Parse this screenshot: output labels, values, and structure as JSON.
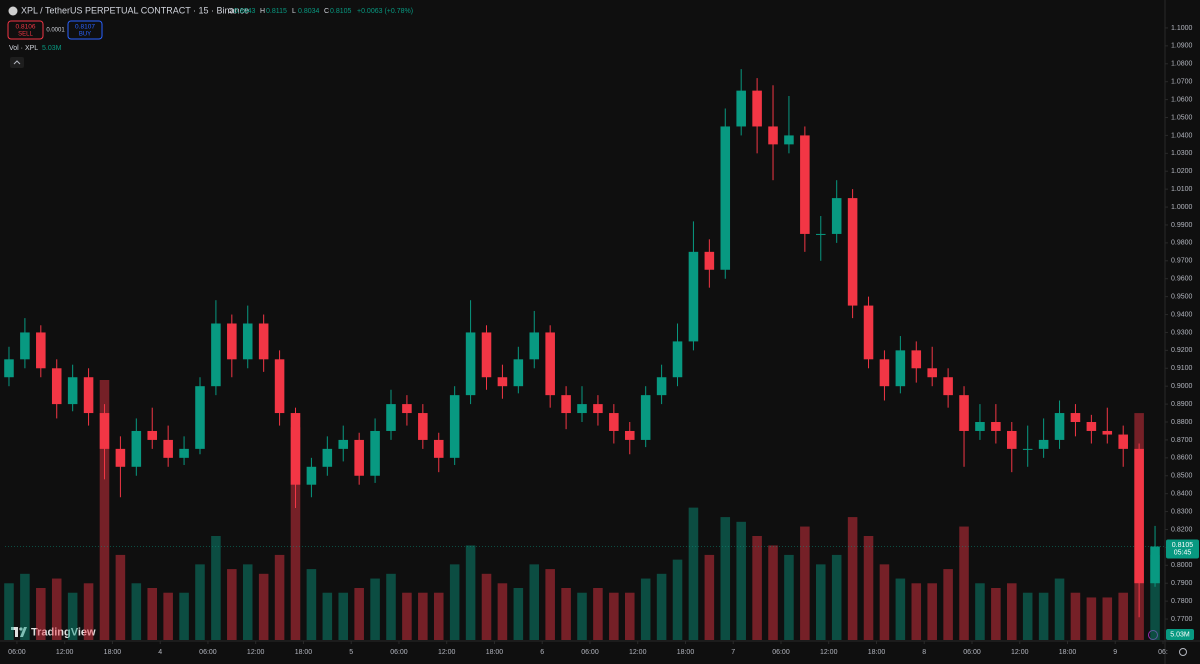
{
  "chart_data": {
    "type": "candlestick",
    "title": "XPL / TetherUS PERPETUAL CONTRACT · 15 · Binance",
    "ohlc_legend": [
      {
        "label": "O",
        "value": "0.8043"
      },
      {
        "label": "H",
        "value": "0.8115"
      },
      {
        "label": "L",
        "value": "0.8034"
      },
      {
        "label": "C",
        "value": "0.8105"
      }
    ],
    "change": "+0.0063 (+0.78%)",
    "sell": {
      "price": "0.8106",
      "label": "SELL"
    },
    "spread": "0.0001",
    "buy": {
      "price": "0.8107",
      "label": "BUY"
    },
    "volume_legend": {
      "label": "Vol · XPL",
      "value": "5.03M"
    },
    "last_price": {
      "value": 0.8105,
      "label": "0.8105"
    },
    "countdown": "05:45",
    "logo": "TradingView",
    "up_color": "#089981",
    "down_color": "#f23645",
    "x": [
      5,
      7,
      9,
      11,
      13,
      15,
      17,
      19,
      21,
      23,
      25,
      27,
      29,
      31,
      33,
      35,
      37,
      39,
      41,
      43,
      45,
      47,
      49,
      51,
      53,
      55,
      57,
      59,
      61,
      63,
      65,
      67,
      69,
      71,
      73,
      75,
      77,
      79,
      81,
      83,
      85,
      87,
      89,
      91,
      93,
      95,
      97,
      99,
      101,
      103,
      105,
      107,
      109,
      111,
      113,
      115,
      117,
      119,
      121,
      123,
      125,
      127,
      129,
      131,
      133,
      135,
      137,
      139,
      141,
      143,
      145,
      147,
      149
    ],
    "open": [
      0.905,
      0.915,
      0.93,
      0.91,
      0.89,
      0.905,
      0.885,
      0.865,
      0.855,
      0.875,
      0.87,
      0.86,
      0.865,
      0.9,
      0.935,
      0.915,
      0.935,
      0.915,
      0.885,
      0.845,
      0.855,
      0.865,
      0.87,
      0.85,
      0.875,
      0.89,
      0.885,
      0.87,
      0.86,
      0.895,
      0.93,
      0.905,
      0.9,
      0.915,
      0.93,
      0.895,
      0.885,
      0.89,
      0.885,
      0.875,
      0.87,
      0.895,
      0.905,
      0.925,
      0.975,
      0.965,
      1.045,
      1.065,
      1.045,
      1.035,
      1.04,
      0.985,
      0.985,
      1.005,
      0.945,
      0.915,
      0.9,
      0.92,
      0.91,
      0.905,
      0.895,
      0.875,
      0.88,
      0.875,
      0.865,
      0.865,
      0.87,
      0.885,
      0.88,
      0.875,
      0.873,
      0.865,
      0.79
    ],
    "high": [
      0.922,
      0.938,
      0.934,
      0.915,
      0.912,
      0.91,
      0.89,
      0.872,
      0.882,
      0.888,
      0.878,
      0.872,
      0.905,
      0.948,
      0.94,
      0.945,
      0.94,
      0.92,
      0.888,
      0.86,
      0.872,
      0.878,
      0.874,
      0.882,
      0.898,
      0.895,
      0.89,
      0.874,
      0.9,
      0.948,
      0.934,
      0.912,
      0.922,
      0.942,
      0.934,
      0.9,
      0.9,
      0.895,
      0.89,
      0.88,
      0.9,
      0.912,
      0.935,
      0.992,
      0.982,
      1.055,
      1.077,
      1.072,
      1.068,
      1.062,
      1.045,
      0.995,
      1.015,
      1.01,
      0.95,
      0.92,
      0.928,
      0.925,
      0.922,
      0.91,
      0.9,
      0.89,
      0.89,
      0.88,
      0.878,
      0.882,
      0.892,
      0.89,
      0.884,
      0.888,
      0.878,
      0.868,
      0.822
    ],
    "low": [
      0.9,
      0.91,
      0.905,
      0.882,
      0.886,
      0.878,
      0.848,
      0.838,
      0.85,
      0.865,
      0.855,
      0.856,
      0.862,
      0.895,
      0.905,
      0.91,
      0.908,
      0.878,
      0.832,
      0.838,
      0.85,
      0.858,
      0.845,
      0.846,
      0.87,
      0.878,
      0.865,
      0.852,
      0.856,
      0.89,
      0.898,
      0.893,
      0.896,
      0.91,
      0.888,
      0.876,
      0.88,
      0.878,
      0.868,
      0.862,
      0.866,
      0.89,
      0.9,
      0.92,
      0.955,
      0.96,
      1.04,
      1.03,
      1.015,
      1.03,
      0.975,
      0.97,
      0.98,
      0.938,
      0.91,
      0.892,
      0.896,
      0.902,
      0.9,
      0.888,
      0.855,
      0.87,
      0.868,
      0.852,
      0.855,
      0.86,
      0.865,
      0.872,
      0.868,
      0.868,
      0.855,
      0.771,
      0.788
    ],
    "close": [
      0.915,
      0.93,
      0.91,
      0.89,
      0.905,
      0.885,
      0.865,
      0.855,
      0.875,
      0.87,
      0.86,
      0.865,
      0.9,
      0.935,
      0.915,
      0.935,
      0.915,
      0.885,
      0.845,
      0.855,
      0.865,
      0.87,
      0.85,
      0.875,
      0.89,
      0.885,
      0.87,
      0.86,
      0.895,
      0.93,
      0.905,
      0.9,
      0.915,
      0.93,
      0.895,
      0.885,
      0.89,
      0.885,
      0.875,
      0.87,
      0.895,
      0.905,
      0.925,
      0.975,
      0.965,
      1.045,
      1.065,
      1.045,
      1.035,
      1.04,
      0.985,
      0.985,
      1.005,
      0.945,
      0.915,
      0.9,
      0.92,
      0.91,
      0.905,
      0.895,
      0.875,
      0.88,
      0.875,
      0.865,
      0.865,
      0.87,
      0.885,
      0.88,
      0.875,
      0.873,
      0.865,
      0.79,
      0.8105
    ],
    "volume": [
      1.2,
      1.4,
      1.1,
      1.3,
      1.0,
      1.2,
      5.5,
      1.8,
      1.2,
      1.1,
      1.0,
      1.0,
      1.6,
      2.2,
      1.5,
      1.6,
      1.4,
      1.8,
      4.5,
      1.5,
      1.0,
      1.0,
      1.1,
      1.3,
      1.4,
      1.0,
      1.0,
      1.0,
      1.6,
      2.0,
      1.4,
      1.2,
      1.1,
      1.6,
      1.5,
      1.1,
      1.0,
      1.1,
      1.0,
      1.0,
      1.3,
      1.4,
      1.7,
      2.8,
      1.8,
      2.6,
      2.5,
      2.2,
      2.0,
      1.8,
      2.4,
      1.6,
      1.8,
      2.6,
      2.2,
      1.6,
      1.3,
      1.2,
      1.2,
      1.5,
      2.4,
      1.2,
      1.1,
      1.2,
      1.0,
      1.0,
      1.3,
      1.0,
      0.9,
      0.9,
      1.0,
      4.8,
      1.8
    ],
    "xlim": [
      4.5,
      150
    ],
    "xticks": [
      {
        "value": 6,
        "label": "06:00"
      },
      {
        "value": 12,
        "label": "12:00"
      },
      {
        "value": 18,
        "label": "18:00"
      },
      {
        "value": 24,
        "label": "4"
      },
      {
        "value": 30,
        "label": "06:00"
      },
      {
        "value": 36,
        "label": "12:00"
      },
      {
        "value": 42,
        "label": "18:00"
      },
      {
        "value": 48,
        "label": "5"
      },
      {
        "value": 54,
        "label": "06:00"
      },
      {
        "value": 60,
        "label": "12:00"
      },
      {
        "value": 66,
        "label": "18:00"
      },
      {
        "value": 72,
        "label": "6"
      },
      {
        "value": 78,
        "label": "06:00"
      },
      {
        "value": 84,
        "label": "12:00"
      },
      {
        "value": 90,
        "label": "18:00"
      },
      {
        "value": 96,
        "label": "7"
      },
      {
        "value": 102,
        "label": "06:00"
      },
      {
        "value": 108,
        "label": "12:00"
      },
      {
        "value": 114,
        "label": "18:00"
      },
      {
        "value": 120,
        "label": "8"
      },
      {
        "value": 126,
        "label": "06:00"
      },
      {
        "value": 132,
        "label": "12:00"
      },
      {
        "value": 138,
        "label": "18:00"
      },
      {
        "value": 144,
        "label": "9"
      },
      {
        "value": 150,
        "label": "06:"
      }
    ],
    "ylim": [
      0.7583,
      1.1156
    ],
    "yticks": [
      {
        "value": 1.1,
        "label": "1.1000"
      },
      {
        "value": 1.09,
        "label": "1.0900"
      },
      {
        "value": 1.08,
        "label": "1.0800"
      },
      {
        "value": 1.07,
        "label": "1.0700"
      },
      {
        "value": 1.06,
        "label": "1.0600"
      },
      {
        "value": 1.05,
        "label": "1.0500"
      },
      {
        "value": 1.04,
        "label": "1.0400"
      },
      {
        "value": 1.03,
        "label": "1.0300"
      },
      {
        "value": 1.02,
        "label": "1.0200"
      },
      {
        "value": 1.01,
        "label": "1.0100"
      },
      {
        "value": 1.0,
        "label": "1.0000"
      },
      {
        "value": 0.99,
        "label": "0.9900"
      },
      {
        "value": 0.98,
        "label": "0.9800"
      },
      {
        "value": 0.97,
        "label": "0.9700"
      },
      {
        "value": 0.96,
        "label": "0.9600"
      },
      {
        "value": 0.95,
        "label": "0.9500"
      },
      {
        "value": 0.94,
        "label": "0.9400"
      },
      {
        "value": 0.93,
        "label": "0.9300"
      },
      {
        "value": 0.92,
        "label": "0.9200"
      },
      {
        "value": 0.91,
        "label": "0.9100"
      },
      {
        "value": 0.9,
        "label": "0.9000"
      },
      {
        "value": 0.89,
        "label": "0.8900"
      },
      {
        "value": 0.88,
        "label": "0.8800"
      },
      {
        "value": 0.87,
        "label": "0.8700"
      },
      {
        "value": 0.86,
        "label": "0.8600"
      },
      {
        "value": 0.85,
        "label": "0.8500"
      },
      {
        "value": 0.84,
        "label": "0.8400"
      },
      {
        "value": 0.83,
        "label": "0.8300"
      },
      {
        "value": 0.82,
        "label": "0.8200"
      },
      {
        "value": 0.81,
        "label": "0.8100"
      },
      {
        "value": 0.8,
        "label": "0.8000"
      },
      {
        "value": 0.79,
        "label": "0.7900"
      },
      {
        "value": 0.78,
        "label": "0.7800"
      },
      {
        "value": 0.77,
        "label": "0.7700"
      }
    ]
  }
}
